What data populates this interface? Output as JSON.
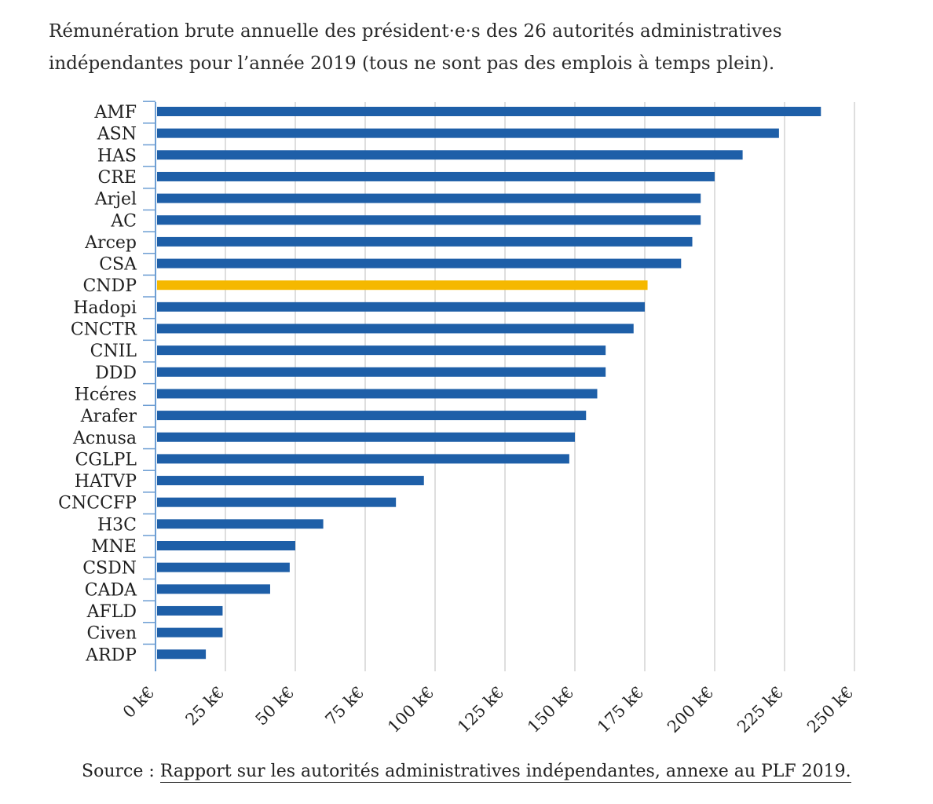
{
  "title_line1": "Rémunération brute annuelle des président·e·s des 26 autorités administratives",
  "title_line2": "indépendantes pour l’année 2019 (tous ne sont pas des emplois à temps plein).",
  "source_label": "Source :",
  "source_link": "Rapport sur les autorités administratives indépendantes, annexe au PLF 2019.",
  "colors": {
    "bar": "#1e5fa8",
    "highlight": "#f5b800",
    "grid": "#c8c8c8"
  },
  "chart_data": {
    "type": "bar",
    "orientation": "horizontal",
    "categories": [
      "AMF",
      "ASN",
      "HAS",
      "CRE",
      "Arjel",
      "AC",
      "Arcep",
      "CSA",
      "CNDP",
      "Hadopi",
      "CNCTR",
      "CNIL",
      "DDD",
      "Hcéres",
      "Arafer",
      "Acnusa",
      "CGLPL",
      "HATVP",
      "CNCCFP",
      "H3C",
      "MNE",
      "CSDN",
      "CADA",
      "AFLD",
      "Civen",
      "ARDP"
    ],
    "values": [
      238,
      223,
      210,
      200,
      195,
      195,
      192,
      188,
      176,
      175,
      171,
      161,
      161,
      158,
      154,
      150,
      148,
      96,
      86,
      60,
      50,
      48,
      41,
      24,
      24,
      18
    ],
    "highlight": "CNDP",
    "xlim": [
      0,
      250
    ],
    "xticks": [
      0,
      25,
      50,
      75,
      100,
      125,
      150,
      175,
      200,
      225,
      250
    ],
    "xtick_labels": [
      "0 k€",
      "25 k€",
      "50 k€",
      "75 k€",
      "100 k€",
      "125 k€",
      "150 k€",
      "175 k€",
      "200 k€",
      "225 k€",
      "250 k€"
    ],
    "grid": true
  }
}
